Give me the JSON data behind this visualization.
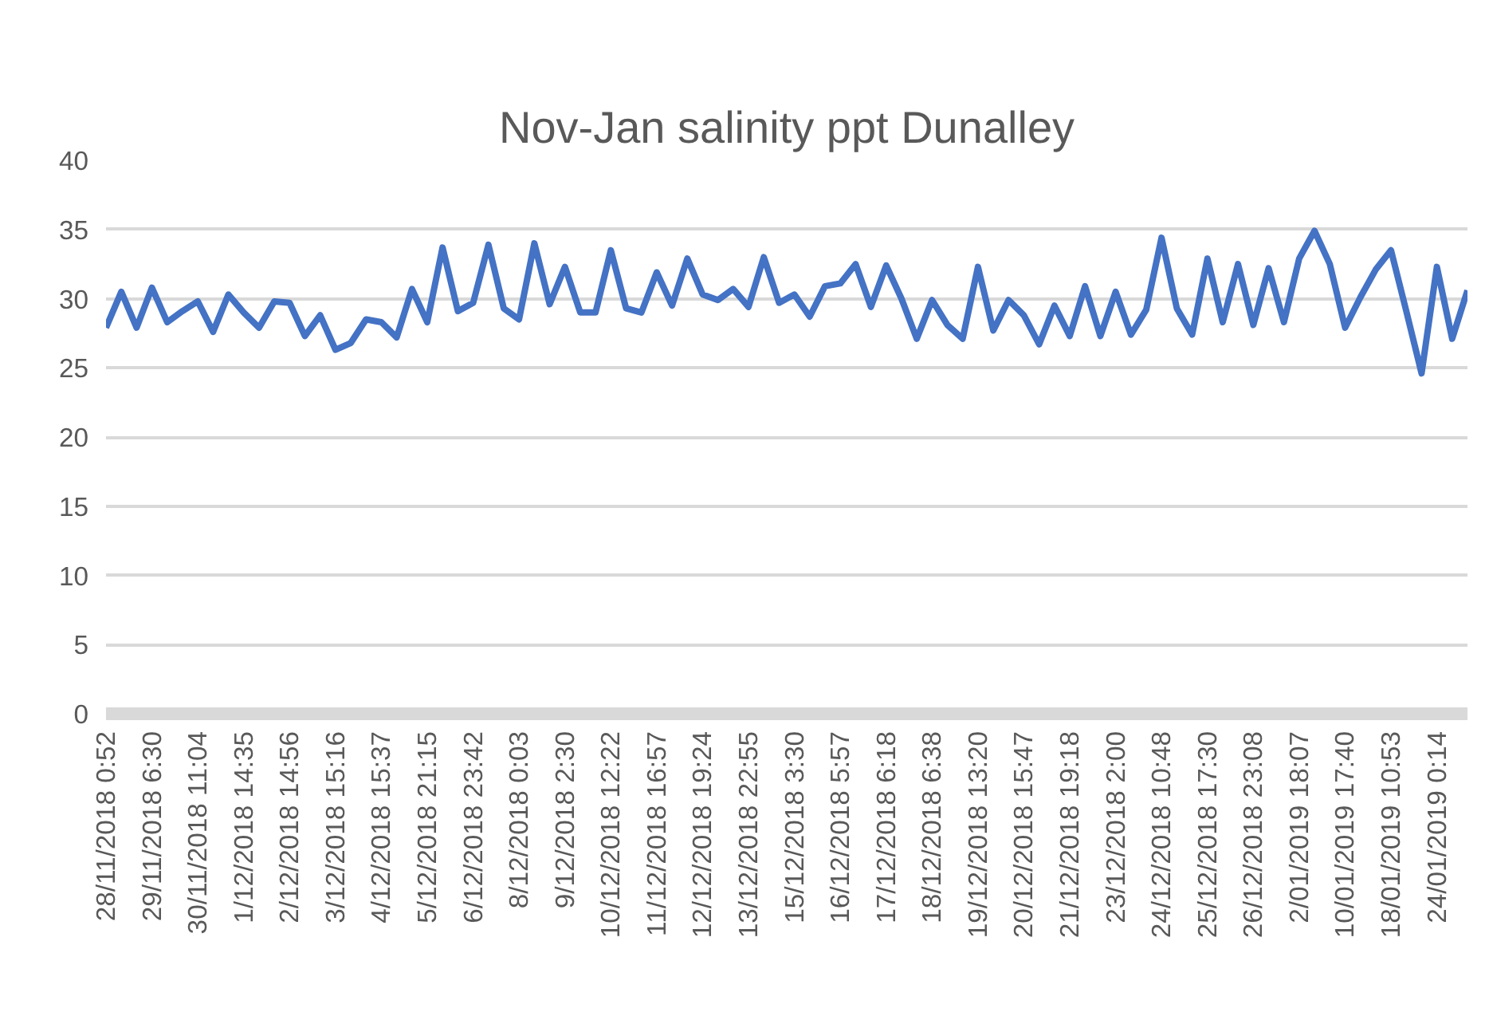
{
  "chart_data": {
    "type": "line",
    "title": "Nov-Jan salinity ppt Dunalley",
    "categories": [
      "28/11/2018 0:52",
      null,
      null,
      "29/11/2018 6:30",
      null,
      null,
      "30/11/2018 11:04",
      null,
      null,
      "1/12/2018 14:35",
      null,
      null,
      "2/12/2018 14:56",
      null,
      null,
      "3/12/2018 15:16",
      null,
      null,
      "4/12/2018 15:37",
      null,
      null,
      "5/12/2018 21:15",
      null,
      null,
      "6/12/2018 23:42",
      null,
      null,
      "8/12/2018 0:03",
      null,
      null,
      "9/12/2018 2:30",
      null,
      null,
      "10/12/2018 12:22",
      null,
      null,
      "11/12/2018 16:57",
      null,
      null,
      "12/12/2018 19:24",
      null,
      null,
      "13/12/2018 22:55",
      null,
      null,
      "15/12/2018 3:30",
      null,
      null,
      "16/12/2018 5:57",
      null,
      null,
      "17/12/2018 6:18",
      null,
      null,
      "18/12/2018 6:38",
      null,
      null,
      "19/12/2018 13:20",
      null,
      null,
      "20/12/2018 15:47",
      null,
      null,
      "21/12/2018 19:18",
      null,
      null,
      "23/12/2018 2:00",
      null,
      null,
      "24/12/2018 10:48",
      null,
      null,
      "25/12/2018 17:30",
      null,
      null,
      "26/12/2018 23:08",
      null,
      null,
      "2/01/2019 18:07",
      null,
      null,
      "10/01/2019 17:40",
      null,
      null,
      "18/01/2019 10:53",
      null,
      null,
      "24/01/2019 0:14",
      null,
      null
    ],
    "series": [
      {
        "color": "#4472c4",
        "values": [
          27.9,
          30.5,
          27.9,
          30.8,
          28.3,
          29.1,
          29.8,
          27.6,
          30.3,
          29.0,
          27.9,
          29.8,
          29.7,
          27.3,
          28.8,
          26.3,
          26.8,
          28.5,
          28.3,
          27.2,
          30.7,
          28.3,
          33.7,
          29.1,
          29.7,
          33.9,
          29.3,
          28.5,
          34.0,
          29.6,
          32.3,
          29.0,
          29.0,
          33.5,
          29.3,
          29.0,
          31.9,
          29.5,
          32.9,
          30.3,
          29.9,
          30.7,
          29.4,
          33.0,
          29.7,
          30.3,
          28.7,
          30.9,
          31.1,
          32.5,
          29.4,
          32.4,
          30.0,
          27.1,
          29.9,
          28.1,
          27.1,
          32.3,
          27.7,
          29.9,
          28.8,
          26.7,
          29.5,
          27.3,
          30.9,
          27.3,
          30.5,
          27.4,
          29.2,
          34.4,
          29.3,
          27.4,
          32.9,
          28.3,
          32.5,
          28.1,
          32.2,
          28.3,
          32.9,
          34.9,
          32.5,
          27.9,
          30.1,
          32.1,
          33.5,
          29.1,
          24.6,
          32.3,
          27.1,
          30.6
        ]
      }
    ],
    "ylim": [
      0,
      40
    ],
    "yticks": [
      0,
      5,
      10,
      15,
      20,
      25,
      30,
      35,
      40
    ],
    "grid": "y",
    "line_style": "solid",
    "marker": "none"
  }
}
